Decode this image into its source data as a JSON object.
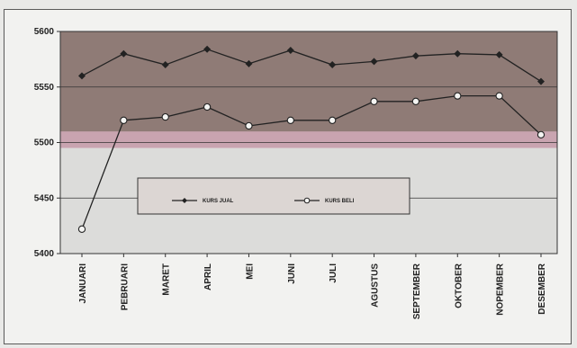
{
  "chart_data": {
    "type": "line",
    "categories": [
      "JANUARI",
      "PEBRUARI",
      "MARET",
      "APRIL",
      "MEI",
      "JUNI",
      "JULI",
      "AGUSTUS",
      "SEPTEMBER",
      "OKTOBER",
      "NOPEMBER",
      "DESEMBER"
    ],
    "series": [
      {
        "name": "KURS JUAL",
        "marker": "filled-diamond",
        "color": "#222222",
        "values": [
          5560,
          5580,
          5570,
          5584,
          5571,
          5583,
          5570,
          5573,
          5578,
          5580,
          5579,
          5555
        ]
      },
      {
        "name": "KURS BELI",
        "marker": "open-circle",
        "color": "#222222",
        "values": [
          5422,
          5520,
          5523,
          5532,
          5515,
          5520,
          5520,
          5537,
          5537,
          5542,
          5542,
          5507
        ]
      }
    ],
    "ylim": [
      5400,
      5600
    ],
    "yticks": [
      5400,
      5450,
      5500,
      5550,
      5600
    ],
    "grid": true,
    "legend_position": "center-bottom",
    "bands": [
      {
        "from": 5500,
        "to": 5600,
        "color": "#8f7b76"
      },
      {
        "from": 5495,
        "to": 5510,
        "color": "#c9a4b0"
      },
      {
        "from": 5400,
        "to": 5495,
        "color": "#dcdcda"
      }
    ]
  }
}
